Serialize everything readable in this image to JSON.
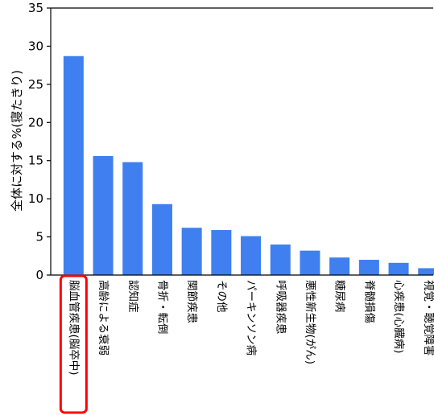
{
  "chart_data": {
    "type": "bar",
    "title": "",
    "xlabel": "",
    "ylabel": "全体に対する%(寝たきり)",
    "ylim": [
      0,
      35
    ],
    "yticks": [
      0,
      5,
      10,
      15,
      20,
      25,
      30,
      35
    ],
    "grid": false,
    "legend": "none",
    "highlighted_category": "脳血管疾患(脳卒中)",
    "categories": [
      "脳血管疾患(脳卒中)",
      "高齢による衰弱",
      "認知症",
      "骨折・転倒",
      "関節疾患",
      "その他",
      "パーキンソン病",
      "呼吸器疾患",
      "悪性新生物(がん)",
      "糖尿病",
      "脊髄損傷",
      "心疾患(心臓病)",
      "視覚・聴覚障害"
    ],
    "values": [
      28.7,
      15.6,
      14.8,
      9.3,
      6.2,
      5.9,
      5.1,
      4.0,
      3.2,
      2.3,
      2.0,
      1.6,
      0.9
    ]
  },
  "colors": {
    "bar": "#3f7fef",
    "highlight": "#ff0000",
    "axis": "#000000"
  }
}
